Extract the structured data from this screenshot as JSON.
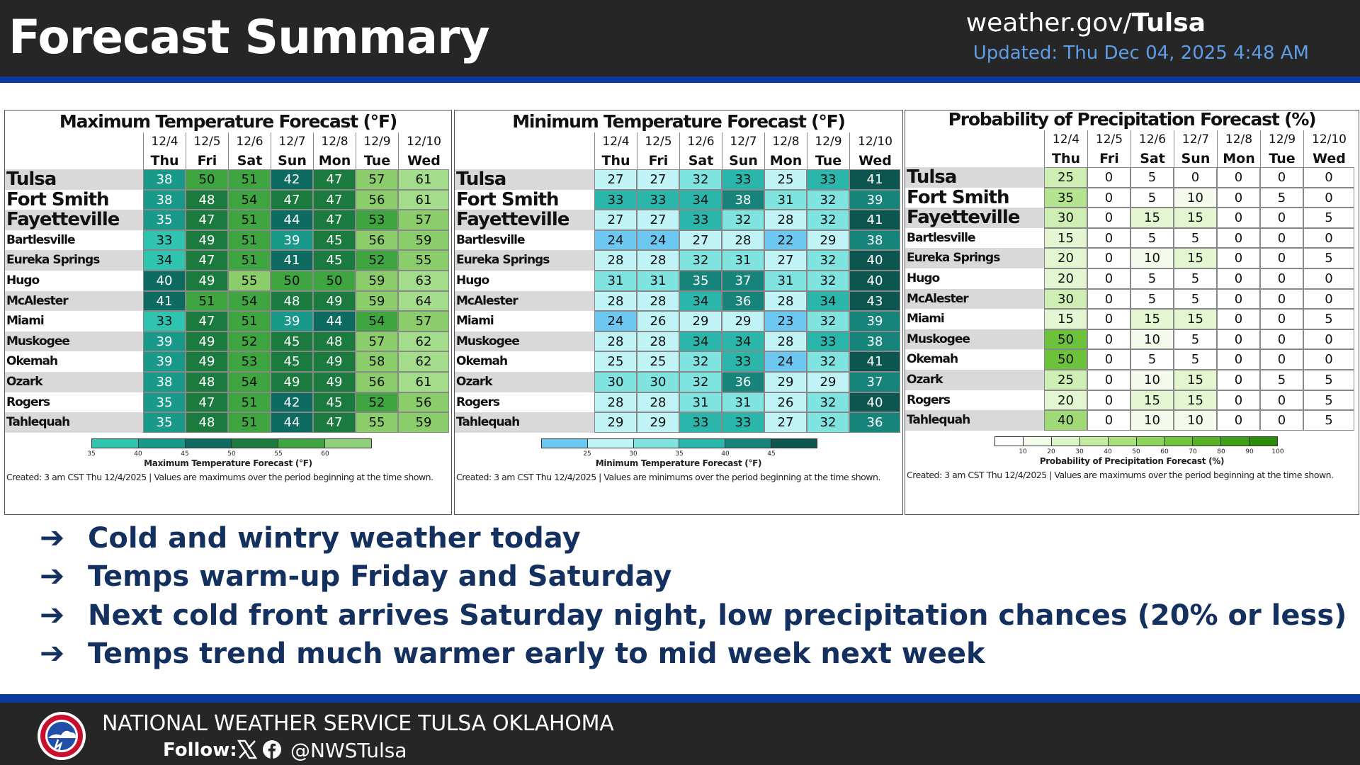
{
  "header": {
    "title": "Forecast Summary",
    "site_prefix": "weather.gov/",
    "site_bold": "Tulsa",
    "updated": "Updated: Thu Dec 04, 2025 4:48 AM"
  },
  "days": [
    {
      "date": "12/4",
      "dow": "Thu"
    },
    {
      "date": "12/5",
      "dow": "Fri"
    },
    {
      "date": "12/6",
      "dow": "Sat"
    },
    {
      "date": "12/7",
      "dow": "Sun"
    },
    {
      "date": "12/8",
      "dow": "Mon"
    },
    {
      "date": "12/9",
      "dow": "Tue"
    },
    {
      "date": "12/10",
      "dow": "Wed"
    }
  ],
  "cities": [
    "Tulsa",
    "Fort Smith",
    "Fayetteville",
    "Bartlesville",
    "Eureka Springs",
    "Hugo",
    "McAlester",
    "Miami",
    "Muskogee",
    "Okemah",
    "Ozark",
    "Rogers",
    "Tahlequah"
  ],
  "panels": [
    {
      "key": "max",
      "title": "Maximum Temperature Forecast (°F)",
      "values": [
        [
          38,
          50,
          51,
          42,
          47,
          57,
          61
        ],
        [
          38,
          48,
          54,
          47,
          47,
          56,
          61
        ],
        [
          35,
          47,
          51,
          44,
          47,
          53,
          57
        ],
        [
          33,
          49,
          51,
          39,
          45,
          56,
          59
        ],
        [
          34,
          47,
          51,
          41,
          45,
          52,
          55
        ],
        [
          40,
          49,
          55,
          50,
          50,
          59,
          63
        ],
        [
          41,
          51,
          54,
          48,
          49,
          59,
          64
        ],
        [
          33,
          47,
          51,
          39,
          44,
          54,
          57
        ],
        [
          39,
          49,
          52,
          45,
          48,
          57,
          62
        ],
        [
          39,
          49,
          53,
          45,
          49,
          58,
          62
        ],
        [
          38,
          48,
          54,
          49,
          49,
          56,
          61
        ],
        [
          35,
          47,
          51,
          42,
          45,
          52,
          56
        ],
        [
          35,
          48,
          51,
          44,
          47,
          55,
          59
        ]
      ],
      "colorbar": {
        "colors": [
          "#2ec4b0",
          "#18998a",
          "#0e6b62",
          "#1b7a3e",
          "#3ea540",
          "#8fd07a"
        ],
        "ticks": [
          "35",
          "40",
          "45",
          "50",
          "55",
          "60"
        ],
        "label": "Maximum Temperature Forecast (°F)"
      },
      "created": "Created: 3 am CST Thu 12/4/2025  |  Values are maximums over the period beginning at the time shown."
    },
    {
      "key": "min",
      "title": "Minimum Temperature Forecast (°F)",
      "values": [
        [
          27,
          27,
          32,
          33,
          25,
          33,
          41
        ],
        [
          33,
          33,
          34,
          38,
          31,
          32,
          39
        ],
        [
          27,
          27,
          33,
          32,
          28,
          32,
          41
        ],
        [
          24,
          24,
          27,
          28,
          22,
          29,
          38
        ],
        [
          28,
          28,
          32,
          31,
          27,
          32,
          40
        ],
        [
          31,
          31,
          35,
          37,
          31,
          32,
          40
        ],
        [
          28,
          28,
          34,
          36,
          28,
          34,
          43
        ],
        [
          24,
          26,
          29,
          29,
          23,
          32,
          39
        ],
        [
          28,
          28,
          34,
          34,
          28,
          33,
          38
        ],
        [
          25,
          25,
          32,
          33,
          24,
          32,
          41
        ],
        [
          30,
          30,
          32,
          36,
          29,
          29,
          37
        ],
        [
          28,
          28,
          31,
          31,
          26,
          32,
          40
        ],
        [
          29,
          29,
          33,
          33,
          27,
          32,
          36
        ]
      ],
      "colorbar": {
        "colors": [
          "#6cc8f0",
          "#bff3f5",
          "#7fe3e0",
          "#2bb6ac",
          "#17847c",
          "#0d5650"
        ],
        "ticks": [
          "25",
          "30",
          "35",
          "40",
          "45"
        ],
        "label": "Minimum Temperature Forecast (°F)"
      },
      "created": "Created: 3 am CST Thu 12/4/2025  |  Values are minimums over the period beginning at the time shown."
    },
    {
      "key": "pop",
      "title": "Probability of Precipitation Forecast (%)",
      "values": [
        [
          25,
          0,
          5,
          0,
          0,
          0,
          0
        ],
        [
          35,
          0,
          5,
          10,
          0,
          5,
          0
        ],
        [
          30,
          0,
          15,
          15,
          0,
          0,
          5
        ],
        [
          15,
          0,
          5,
          5,
          0,
          0,
          0
        ],
        [
          20,
          0,
          10,
          15,
          0,
          0,
          5
        ],
        [
          20,
          0,
          5,
          5,
          0,
          0,
          0
        ],
        [
          30,
          0,
          5,
          5,
          0,
          0,
          0
        ],
        [
          15,
          0,
          15,
          15,
          0,
          0,
          5
        ],
        [
          50,
          0,
          10,
          5,
          0,
          0,
          0
        ],
        [
          50,
          0,
          5,
          5,
          0,
          0,
          0
        ],
        [
          25,
          0,
          10,
          15,
          0,
          5,
          5
        ],
        [
          20,
          0,
          15,
          15,
          0,
          0,
          5
        ],
        [
          40,
          0,
          10,
          10,
          0,
          0,
          5
        ]
      ],
      "colorbar": {
        "colors": [
          "#ffffff",
          "#f2fce8",
          "#dcf5c6",
          "#c4ec9e",
          "#a8e07a",
          "#8ed35a",
          "#72c43c",
          "#58b226",
          "#3f9f16",
          "#2b8c0a"
        ],
        "ticks": [
          "10",
          "20",
          "30",
          "40",
          "50",
          "60",
          "70",
          "80",
          "90",
          "100"
        ],
        "label": "Probability of Precipitation Forecast (%)"
      },
      "created": "Created: 3 am CST Thu 12/4/2025  |  Values are maximums over the period beginning at the time shown."
    }
  ],
  "bullets": [
    "Cold and wintry weather today",
    "Temps warm-up Friday and Saturday",
    "Next cold front arrives Saturday night, low precipitation chances (20% or less)",
    "Temps trend much warmer early to mid week next week"
  ],
  "bullet_arrow": "➔",
  "footer": {
    "org": "NATIONAL WEATHER SERVICE TULSA OKLAHOMA",
    "follow": "Follow:",
    "handle": "@NWSTulsa",
    "logo_icon": "nws-logo-icon",
    "social_icons": [
      "x-icon",
      "facebook-icon"
    ]
  }
}
